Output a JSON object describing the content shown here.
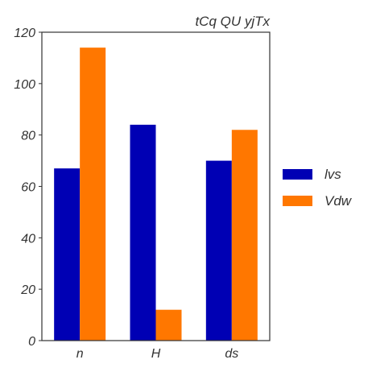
{
  "chart_data": {
    "type": "bar",
    "title": "tCq QU yjTx",
    "xlabel": "",
    "ylabel": "",
    "categories": [
      "n",
      "H",
      "ds"
    ],
    "series": [
      {
        "name": "lvs",
        "values": [
          67,
          84,
          70
        ],
        "color": "#0000b4"
      },
      {
        "name": "Vdw",
        "values": [
          114,
          12,
          82
        ],
        "color": "#ff7700"
      }
    ],
    "ylim": [
      0,
      120
    ],
    "yticks": [
      0,
      20,
      40,
      60,
      80,
      100,
      120
    ],
    "grid": false,
    "legend": {
      "placement": "right",
      "entries": [
        "lvs",
        "Vdw"
      ]
    }
  }
}
